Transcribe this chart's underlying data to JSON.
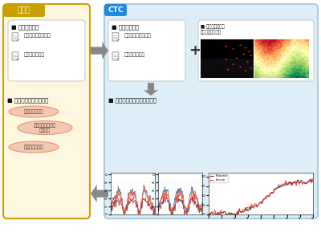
{
  "bg_color": "#ffffff",
  "left_panel_bg": "#fef7e0",
  "left_panel_border": "#c8a000",
  "left_header_bg": "#c8a000",
  "left_header_text": "お客様",
  "left_header_text_color": "#ffffff",
  "right_panel_bg": "#ddeef8",
  "right_panel_border": "#aaccdd",
  "right_header_bg": "#2288dd",
  "right_header_text": "CTC",
  "right_header_text_color": "#ffffff",
  "left_doc_title": "■ 発電所の情報",
  "left_doc_items": [
    "発電所の諸元データ",
    "発電実績データ"
  ],
  "left_usage_title": "■ 発電予測データの活用",
  "left_usage_items": [
    "発電計画書作成",
    "メンテナンス作業\n計画作成",
    "余剰電力の適用"
  ],
  "right_doc_title": "■ 発電所の情報",
  "right_doc_items": [
    "発電所の諸元データ",
    "発電実績データ"
  ],
  "weather_title": "■ 気象予測データ\n（風況・日射量）",
  "predict_title": "■ 発電量の予測データを作成",
  "arrow_color": "#888888",
  "oval_bg": "#f5c8b0",
  "oval_border": "#e09878",
  "oval_text_color": "#333333"
}
